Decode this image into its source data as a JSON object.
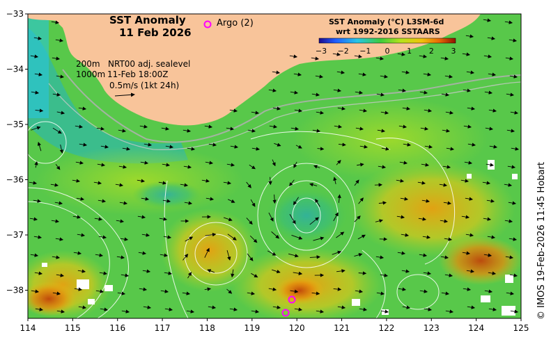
{
  "map": {
    "title_line1": "SST Anomaly",
    "title_line2": "11 Feb 2026",
    "argo_label": "Argo (2)",
    "legend": {
      "line1_depth": "200m",
      "line1_text": "NRT00 adj. sealevel",
      "line2_depth": "1000m",
      "line2_text": "11-Feb 18:00Z",
      "line3_text": "0.5m/s (1kt 24h)"
    },
    "colorbar": {
      "title_line1": "SST Anomaly (°C) L3SM-6d",
      "title_line2": "wrt 1992-2016 SSTAARS",
      "ticks": [
        "−3",
        "−2",
        "−1",
        "0",
        "1",
        "2",
        "3"
      ],
      "colors": [
        "#1a0a8c",
        "#1f5cff",
        "#27c6e6",
        "#3ccc3c",
        "#b6e31b",
        "#f0c30a",
        "#ea6a06",
        "#8e1300"
      ]
    },
    "x_ticks": [
      "114",
      "115",
      "116",
      "117",
      "118",
      "119",
      "120",
      "121",
      "122",
      "123",
      "124",
      "125"
    ],
    "y_ticks": [
      "−33",
      "−34",
      "−35",
      "−36",
      "−37",
      "−38"
    ],
    "copyright": "© IMOS 19-Feb-2026 11:45 Hobart",
    "colors": {
      "land": "#f8c49a",
      "argo_marker": "#ff00ff",
      "sea_base": "#58c84a"
    }
  }
}
